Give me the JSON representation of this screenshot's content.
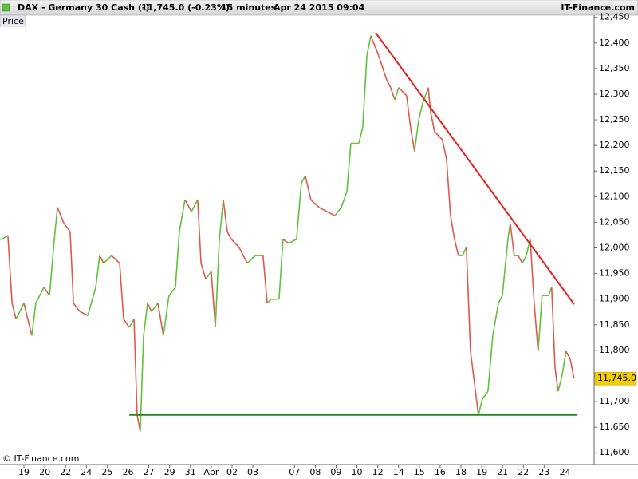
{
  "chart_data": {
    "type": "line",
    "title": "DAX - Germany 30 Cash (-)",
    "last_quote": "11,745.0 (-0.23%)",
    "interval": "15 minutes",
    "timestamp": "Apr 24 2015 09:04",
    "brand": "IT-Finance.com",
    "copyright": "© IT-Finance.com",
    "axis_tag": "Price",
    "up_color": "#5ec23a",
    "down_color": "#e0584c",
    "x": [
      -1.07,
      -0.77,
      -0.57,
      -0.38,
      0,
      0.38,
      0.57,
      0.96,
      1.23,
      1.46,
      1.61,
      1.92,
      2.22,
      2.38,
      2.68,
      3.07,
      3.45,
      3.64,
      3.83,
      4.21,
      4.6,
      4.79,
      5.06,
      5.29,
      5.44,
      5.59,
      5.75,
      5.94,
      6.13,
      6.44,
      6.7,
      6.97,
      7.28,
      7.47,
      7.74,
      8.05,
      8.35,
      8.51,
      8.74,
      9.0,
      9.2,
      9.39,
      9.58,
      9.77,
      9.96,
      10.34,
      10.73,
      11.11,
      11.49,
      11.69,
      11.88,
      12.26,
      12.45,
      12.72,
      13.1,
      13.33,
      13.52,
      13.79,
      14.18,
      14.56,
      14.94,
      15.25,
      15.52,
      15.71,
      16.09,
      16.28,
      16.48,
      16.67,
      17.05,
      17.43,
      17.62,
      17.82,
      18.01,
      18.39,
      18.58,
      18.77,
      18.97,
      19.16,
      19.43,
      19.54,
      19.73,
      20.11,
      20.31,
      20.5,
      20.69,
      20.88,
      21.07,
      21.26,
      21.46,
      21.65,
      21.84,
      22.03,
      22.3,
      22.53,
      22.8,
      22.99,
      23.26,
      23.37,
      23.56,
      23.75,
      23.95,
      24.14,
      24.33,
      24.52,
      24.71,
      24.9,
      25.21,
      25.36,
      25.52,
      25.67,
      25.86,
      26.05,
      26.25,
      26.44
    ],
    "values": [
      12017,
      12024,
      11892,
      11861,
      11892,
      11829,
      11892,
      11923,
      11907,
      12017,
      12079,
      12048,
      12032,
      11892,
      11876,
      11868,
      11923,
      11985,
      11970,
      11985,
      11970,
      11861,
      11845,
      11861,
      11674,
      11642,
      11829,
      11892,
      11876,
      11892,
      11829,
      11907,
      11923,
      12032,
      12094,
      12071,
      12094,
      11970,
      11939,
      11954,
      11845,
      12017,
      12094,
      12032,
      12017,
      12001,
      11970,
      11985,
      11985,
      11892,
      11900,
      11900,
      12017,
      12009,
      12017,
      12126,
      12141,
      12094,
      12079,
      12071,
      12063,
      12079,
      12110,
      12204,
      12204,
      12235,
      12375,
      12414,
      12375,
      12328,
      12313,
      12289,
      12313,
      12297,
      12235,
      12188,
      12250,
      12282,
      12313,
      12266,
      12227,
      12211,
      12172,
      12063,
      12017,
      11985,
      11985,
      12001,
      11798,
      11736,
      11674,
      11705,
      11720,
      11829,
      11892,
      11907,
      12017,
      12048,
      11985,
      11985,
      11970,
      11985,
      12017,
      11892,
      11798,
      11907,
      11907,
      11923,
      11767,
      11720,
      11751,
      11798,
      11783,
      11745
    ],
    "last_price": {
      "value": 11745,
      "label": "11,745.0"
    },
    "trendlines": [
      {
        "color": "#e8201c",
        "x": [
          16.9,
          26.44
        ],
        "values": [
          12420,
          11890
        ]
      },
      {
        "color": "#1e8a1e",
        "x": [
          5.06,
          26.6
        ],
        "values": [
          11674,
          11674
        ]
      }
    ],
    "xlim": [
      -1.15,
      27.4
    ],
    "xticks": [
      {
        "value": 0,
        "label": "19"
      },
      {
        "value": 1,
        "label": "20"
      },
      {
        "value": 2,
        "label": "22"
      },
      {
        "value": 3,
        "label": "24"
      },
      {
        "value": 4,
        "label": "25"
      },
      {
        "value": 5,
        "label": "26"
      },
      {
        "value": 6,
        "label": "27"
      },
      {
        "value": 7,
        "label": "29"
      },
      {
        "value": 8,
        "label": "31"
      },
      {
        "value": 9,
        "label": "Apr"
      },
      {
        "value": 10,
        "label": "02"
      },
      {
        "value": 11,
        "label": "03"
      },
      {
        "value": 13,
        "label": "07"
      },
      {
        "value": 14,
        "label": "08"
      },
      {
        "value": 15,
        "label": "09"
      },
      {
        "value": 16,
        "label": "10"
      },
      {
        "value": 17,
        "label": "12"
      },
      {
        "value": 18,
        "label": "14"
      },
      {
        "value": 19,
        "label": "15"
      },
      {
        "value": 20,
        "label": "16"
      },
      {
        "value": 21,
        "label": "18"
      },
      {
        "value": 22,
        "label": "19"
      },
      {
        "value": 23,
        "label": "21"
      },
      {
        "value": 24,
        "label": "22"
      },
      {
        "value": 25,
        "label": "23"
      },
      {
        "value": 26,
        "label": "24"
      }
    ],
    "ylim": [
      11577,
      12462
    ],
    "yticks": [
      {
        "value": 11600,
        "label": "11,600"
      },
      {
        "value": 11650,
        "label": "11,650"
      },
      {
        "value": 11700,
        "label": "11,700"
      },
      {
        "value": 11750,
        "label": "11,750"
      },
      {
        "value": 11800,
        "label": "11,800"
      },
      {
        "value": 11850,
        "label": "11,850"
      },
      {
        "value": 11900,
        "label": "11,900"
      },
      {
        "value": 11950,
        "label": "11,950"
      },
      {
        "value": 12000,
        "label": "12,000"
      },
      {
        "value": 12050,
        "label": "12,050"
      },
      {
        "value": 12100,
        "label": "12,100"
      },
      {
        "value": 12150,
        "label": "12,150"
      },
      {
        "value": 12200,
        "label": "12,200"
      },
      {
        "value": 12250,
        "label": "12,250"
      },
      {
        "value": 12300,
        "label": "12,300"
      },
      {
        "value": 12350,
        "label": "12,350"
      },
      {
        "value": 12400,
        "label": "12,400"
      },
      {
        "value": 12450,
        "label": "12,450"
      }
    ]
  }
}
